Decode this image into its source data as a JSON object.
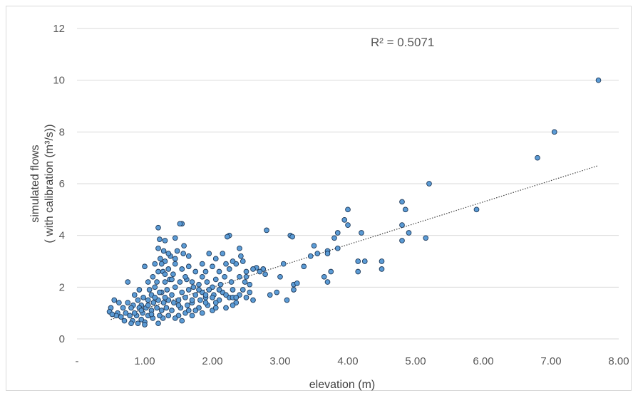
{
  "chart_data": {
    "type": "scatter",
    "title": "",
    "xlabel": "elevation (m)",
    "ylabel_lines": [
      "simulated flows",
      "( with calibration  (m³/s))"
    ],
    "xlim": [
      0,
      8
    ],
    "ylim": [
      0,
      12
    ],
    "x_ticks": [
      0,
      1,
      2,
      3,
      4,
      5,
      6,
      7,
      8
    ],
    "x_tick_labels": [
      "-",
      "1.00",
      "2.00",
      "3.00",
      "4.00",
      "5.00",
      "6.00",
      "7.00",
      "8.00"
    ],
    "y_ticks": [
      0,
      2,
      4,
      6,
      8,
      10,
      12
    ],
    "y_tick_labels": [
      "0",
      "2",
      "4",
      "6",
      "8",
      "10",
      "12"
    ],
    "grid": "horizontal",
    "legend": "none",
    "annotation": "R² = 0.5071",
    "trendline": {
      "type": "linear",
      "x": [
        0.5,
        7.7
      ],
      "y": [
        0.75,
        6.7
      ]
    },
    "marker_fill": "#5b9bd5",
    "marker_stroke": "#1f3a5a",
    "gridline_color": "#d9d9d9",
    "trendline_color": "#404040",
    "points": [
      [
        7.7,
        10.0
      ],
      [
        7.05,
        8.0
      ],
      [
        6.8,
        7.0
      ],
      [
        5.2,
        6.0
      ],
      [
        5.9,
        5.0
      ],
      [
        5.15,
        3.9
      ],
      [
        4.8,
        5.3
      ],
      [
        4.85,
        5.0
      ],
      [
        4.8,
        4.4
      ],
      [
        4.9,
        4.1
      ],
      [
        4.8,
        3.8
      ],
      [
        4.5,
        3.0
      ],
      [
        4.5,
        2.7
      ],
      [
        4.25,
        3.0
      ],
      [
        4.15,
        3.0
      ],
      [
        4.15,
        2.6
      ],
      [
        4.2,
        4.1
      ],
      [
        4.0,
        5.0
      ],
      [
        3.95,
        4.6
      ],
      [
        4.0,
        4.4
      ],
      [
        3.85,
        4.1
      ],
      [
        3.8,
        3.9
      ],
      [
        3.85,
        3.5
      ],
      [
        3.7,
        3.4
      ],
      [
        3.7,
        3.3
      ],
      [
        3.75,
        2.6
      ],
      [
        3.65,
        2.4
      ],
      [
        3.7,
        2.2
      ],
      [
        3.55,
        3.3
      ],
      [
        3.5,
        3.6
      ],
      [
        3.45,
        3.2
      ],
      [
        3.35,
        2.8
      ],
      [
        3.2,
        2.1
      ],
      [
        3.15,
        4.0
      ],
      [
        3.18,
        3.95
      ],
      [
        3.25,
        2.15
      ],
      [
        3.2,
        1.9
      ],
      [
        3.05,
        2.9
      ],
      [
        3.0,
        2.4
      ],
      [
        3.1,
        1.5
      ],
      [
        2.95,
        1.8
      ],
      [
        2.8,
        4.2
      ],
      [
        2.85,
        1.7
      ],
      [
        2.75,
        2.7
      ],
      [
        2.78,
        2.5
      ],
      [
        2.7,
        2.6
      ],
      [
        2.65,
        2.75
      ],
      [
        2.6,
        2.7
      ],
      [
        2.5,
        2.6
      ],
      [
        2.5,
        2.4
      ],
      [
        2.45,
        3.0
      ],
      [
        2.48,
        2.2
      ],
      [
        2.55,
        1.8
      ],
      [
        2.6,
        1.5
      ],
      [
        2.4,
        3.5
      ],
      [
        2.42,
        3.2
      ],
      [
        2.35,
        2.9
      ],
      [
        2.4,
        2.4
      ],
      [
        2.4,
        1.7
      ],
      [
        2.35,
        1.4
      ],
      [
        2.25,
        4.0
      ],
      [
        2.22,
        3.95
      ],
      [
        2.3,
        3.0
      ],
      [
        2.25,
        2.7
      ],
      [
        2.28,
        2.2
      ],
      [
        2.3,
        1.9
      ],
      [
        2.25,
        1.6
      ],
      [
        2.3,
        1.3
      ],
      [
        2.15,
        3.3
      ],
      [
        2.2,
        2.9
      ],
      [
        2.1,
        2.6
      ],
      [
        2.18,
        2.4
      ],
      [
        2.12,
        2.1
      ],
      [
        2.15,
        1.8
      ],
      [
        2.1,
        1.5
      ],
      [
        2.2,
        1.2
      ],
      [
        2.05,
        3.1
      ],
      [
        2.0,
        2.8
      ],
      [
        2.05,
        2.3
      ],
      [
        2.0,
        2.0
      ],
      [
        2.02,
        1.7
      ],
      [
        2.05,
        1.4
      ],
      [
        2.0,
        1.1
      ],
      [
        1.95,
        3.3
      ],
      [
        1.9,
        2.6
      ],
      [
        1.92,
        2.2
      ],
      [
        1.95,
        1.9
      ],
      [
        1.9,
        1.6
      ],
      [
        1.93,
        1.3
      ],
      [
        1.85,
        2.9
      ],
      [
        1.85,
        2.4
      ],
      [
        1.8,
        2.1
      ],
      [
        1.85,
        1.8
      ],
      [
        1.82,
        1.5
      ],
      [
        1.8,
        1.2
      ],
      [
        1.75,
        2.6
      ],
      [
        1.72,
        2.0
      ],
      [
        1.75,
        1.7
      ],
      [
        1.7,
        1.4
      ],
      [
        1.75,
        1.1
      ],
      [
        1.7,
        0.9
      ],
      [
        1.65,
        3.2
      ],
      [
        1.65,
        2.8
      ],
      [
        1.62,
        2.3
      ],
      [
        1.65,
        1.9
      ],
      [
        1.6,
        1.6
      ],
      [
        1.63,
        1.3
      ],
      [
        1.6,
        1.0
      ],
      [
        1.58,
        3.6
      ],
      [
        1.55,
        4.45
      ],
      [
        1.52,
        4.45
      ],
      [
        1.57,
        3.3
      ],
      [
        1.55,
        2.7
      ],
      [
        1.52,
        2.2
      ],
      [
        1.55,
        1.8
      ],
      [
        1.5,
        1.5
      ],
      [
        1.53,
        1.2
      ],
      [
        1.5,
        0.9
      ],
      [
        1.45,
        3.9
      ],
      [
        1.48,
        3.4
      ],
      [
        1.45,
        2.9
      ],
      [
        1.42,
        2.5
      ],
      [
        1.45,
        2.0
      ],
      [
        1.4,
        1.7
      ],
      [
        1.43,
        1.4
      ],
      [
        1.4,
        1.1
      ],
      [
        1.45,
        0.8
      ],
      [
        1.38,
        3.2
      ],
      [
        1.35,
        2.7
      ],
      [
        1.37,
        2.3
      ],
      [
        1.33,
        1.9
      ],
      [
        1.35,
        1.5
      ],
      [
        1.32,
        1.2
      ],
      [
        1.35,
        0.9
      ],
      [
        1.3,
        3.8
      ],
      [
        1.28,
        3.4
      ],
      [
        1.3,
        3.0
      ],
      [
        1.27,
        2.6
      ],
      [
        1.3,
        2.2
      ],
      [
        1.25,
        1.8
      ],
      [
        1.28,
        1.4
      ],
      [
        1.25,
        1.1
      ],
      [
        1.27,
        0.8
      ],
      [
        1.22,
        3.85
      ],
      [
        1.2,
        3.5
      ],
      [
        1.23,
        3.1
      ],
      [
        1.2,
        2.6
      ],
      [
        1.18,
        2.2
      ],
      [
        1.22,
        1.8
      ],
      [
        1.2,
        1.5
      ],
      [
        1.18,
        1.2
      ],
      [
        1.22,
        0.9
      ],
      [
        1.2,
        0.6
      ],
      [
        1.2,
        4.3
      ],
      [
        1.15,
        2.9
      ],
      [
        1.12,
        2.4
      ],
      [
        1.15,
        2.0
      ],
      [
        1.1,
        1.7
      ],
      [
        1.13,
        1.4
      ],
      [
        1.1,
        1.1
      ],
      [
        1.12,
        0.8
      ],
      [
        1.05,
        2.2
      ],
      [
        1.07,
        1.9
      ],
      [
        1.05,
        1.5
      ],
      [
        1.02,
        1.2
      ],
      [
        1.05,
        0.9
      ],
      [
        1.0,
        0.65
      ],
      [
        1.0,
        2.8
      ],
      [
        0.98,
        1.6
      ],
      [
        0.95,
        1.3
      ],
      [
        0.97,
        1.0
      ],
      [
        0.95,
        0.75
      ],
      [
        0.92,
        1.9
      ],
      [
        0.9,
        1.5
      ],
      [
        0.92,
        1.2
      ],
      [
        0.88,
        0.9
      ],
      [
        0.9,
        0.6
      ],
      [
        0.85,
        1.7
      ],
      [
        0.83,
        1.3
      ],
      [
        0.85,
        1.0
      ],
      [
        0.82,
        0.7
      ],
      [
        0.8,
        1.2
      ],
      [
        0.78,
        0.9
      ],
      [
        0.8,
        0.6
      ],
      [
        0.75,
        2.2
      ],
      [
        0.75,
        1.4
      ],
      [
        0.72,
        1.0
      ],
      [
        0.7,
        0.7
      ],
      [
        0.68,
        1.2
      ],
      [
        0.65,
        0.85
      ],
      [
        0.62,
        1.4
      ],
      [
        0.6,
        1.0
      ],
      [
        0.58,
        0.9
      ],
      [
        0.55,
        1.5
      ],
      [
        0.5,
        1.2
      ],
      [
        0.48,
        1.05
      ],
      [
        0.52,
        0.95
      ],
      [
        1.6,
        2.4
      ],
      [
        1.7,
        2.2
      ],
      [
        1.8,
        1.9
      ],
      [
        1.9,
        1.7
      ],
      [
        2.0,
        1.6
      ],
      [
        2.1,
        1.9
      ],
      [
        2.2,
        1.7
      ],
      [
        2.3,
        1.6
      ],
      [
        2.45,
        1.9
      ],
      [
        2.55,
        2.1
      ],
      [
        1.4,
        2.3
      ],
      [
        1.3,
        2.5
      ],
      [
        1.25,
        2.9
      ],
      [
        1.35,
        3.3
      ],
      [
        1.45,
        3.1
      ],
      [
        1.15,
        1.6
      ],
      [
        1.05,
        1.3
      ],
      [
        0.95,
        1.1
      ],
      [
        1.1,
        0.95
      ],
      [
        1.3,
        1.6
      ],
      [
        1.5,
        1.3
      ],
      [
        1.7,
        1.5
      ],
      [
        1.9,
        1.4
      ],
      [
        2.05,
        1.2
      ],
      [
        2.35,
        1.6
      ],
      [
        2.5,
        1.6
      ],
      [
        1.65,
        1.1
      ],
      [
        1.85,
        1.0
      ],
      [
        1.55,
        0.7
      ],
      [
        1.0,
        0.55
      ]
    ]
  }
}
